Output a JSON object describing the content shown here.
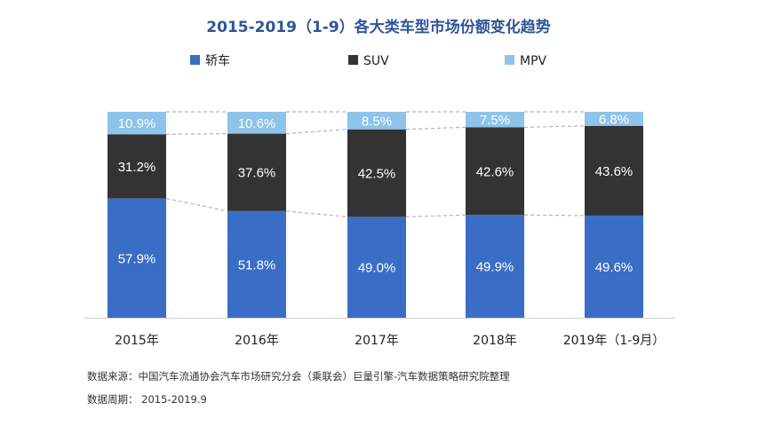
{
  "chart_data": {
    "type": "bar",
    "stacked": true,
    "title": "2015-2019（1-9）各大类车型市场份额变化趋势",
    "categories": [
      "2015年",
      "2016年",
      "2017年",
      "2018年",
      "2019年（1-9月）"
    ],
    "series": [
      {
        "name": "轿车",
        "color": "#3a6ec6",
        "values": [
          57.9,
          51.8,
          49.0,
          49.9,
          49.6
        ]
      },
      {
        "name": "SUV",
        "color": "#333333",
        "values": [
          31.2,
          37.6,
          42.5,
          42.6,
          43.6
        ]
      },
      {
        "name": "MPV",
        "color": "#8ec3ea",
        "values": [
          10.9,
          10.6,
          8.5,
          7.5,
          6.8
        ]
      }
    ],
    "value_labels": [
      [
        "57.9%",
        "51.8%",
        "49.0%",
        "49.9%",
        "49.6%"
      ],
      [
        "31.2%",
        "37.6%",
        "42.5%",
        "42.6%",
        "43.6%"
      ],
      [
        "10.9%",
        "10.6%",
        "8.5%",
        "7.5%",
        "6.8%"
      ]
    ],
    "unit": "%",
    "ylim": [
      0,
      100
    ],
    "grid": false,
    "legend_position": "top",
    "connector_lines": "dashed"
  },
  "footnotes": {
    "source": "数据来源：中国汽车流通协会汽车市场研究分会（乘联会）巨量引擎-汽车数据策略研究院整理",
    "period": "数据周期：  2015-2019.9"
  }
}
